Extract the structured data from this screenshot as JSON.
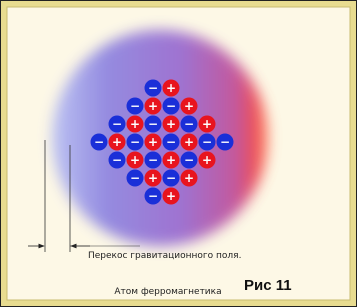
{
  "atom": {
    "rows": [
      [
        "−",
        "+"
      ],
      [
        "−",
        "+",
        "−",
        "+"
      ],
      [
        "−",
        "+",
        "−",
        "+",
        "−",
        "+"
      ],
      [
        "−",
        "+",
        "−",
        "+",
        "−",
        "+",
        "−",
        "−"
      ],
      [
        "−",
        "+",
        "−",
        "+",
        "−",
        "+"
      ],
      [
        "−",
        "+",
        "−",
        "+"
      ],
      [
        "−",
        "+"
      ]
    ]
  },
  "labels": {
    "skew": "Перекос гравитационного поля.",
    "caption": "Атом ферромагнетика",
    "figure": "Рис 11"
  }
}
